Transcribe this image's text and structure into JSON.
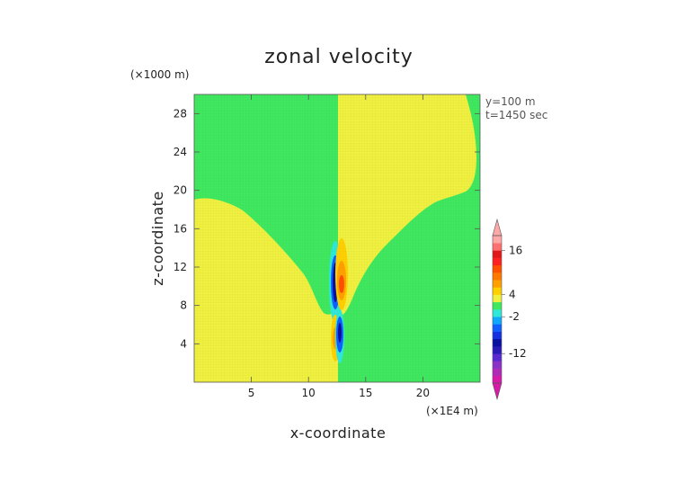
{
  "chart_data": {
    "type": "heatmap",
    "title": "zonal velocity",
    "xlabel": "x-coordinate",
    "ylabel": "z-coordinate",
    "x_unit": "(×1E4 m)",
    "y_unit": "(×1000 m)",
    "annotations": [
      "y=100 m",
      "t=1450 sec"
    ],
    "xlim": [
      0,
      25
    ],
    "ylim": [
      0,
      30
    ],
    "x_ticks": [
      5,
      10,
      15,
      20
    ],
    "y_ticks": [
      4,
      8,
      12,
      16,
      20,
      24,
      28
    ],
    "colorbar": {
      "levels": [
        -20,
        -18,
        -16,
        -14,
        -12,
        -10,
        -8,
        -6,
        -4,
        -2,
        0,
        2,
        4,
        6,
        8,
        10,
        12,
        14,
        16,
        18,
        20
      ],
      "labeled_levels": [
        16,
        4,
        -2,
        -12
      ],
      "colors": [
        "#d81aa8",
        "#b02ab8",
        "#8a32c8",
        "#5a2ad0",
        "#2a1ab8",
        "#0a10a0",
        "#1530e0",
        "#1060ff",
        "#10a8ff",
        "#30e8d8",
        "#40e860",
        "#f0f040",
        "#ffd000",
        "#ffa000",
        "#ff7800",
        "#ff5000",
        "#ff2020",
        "#e01818",
        "#ff7070",
        "#ffa8a8"
      ]
    },
    "regions": [
      {
        "name": "positive-background",
        "color": "#f0f040",
        "value_range": [
          0,
          2
        ]
      },
      {
        "name": "negative-background",
        "color": "#40e860",
        "value_range": [
          -2,
          0
        ]
      }
    ]
  },
  "colors": {
    "green": "#40e860",
    "yellow": "#f0f040"
  }
}
